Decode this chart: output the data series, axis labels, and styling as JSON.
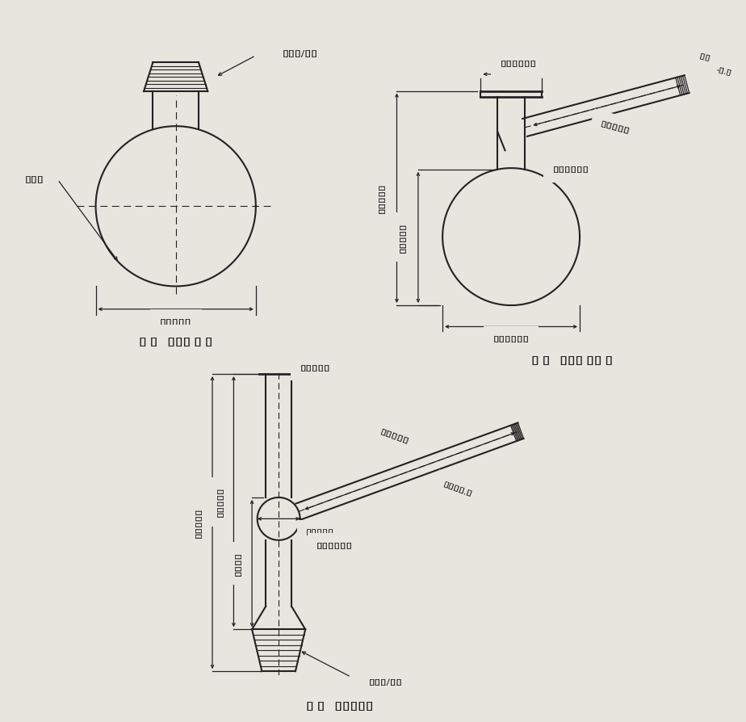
{
  "bg_color": "#e8e4de",
  "line_color": "#222222",
  "dim_color": "#222222",
  "fig1": {
    "title": "图 1   蒸馏瓶 I 型",
    "label_phi": "φ24/29",
    "label_dia": "φ69±1",
    "label_wall": "1～2"
  },
  "fig2": {
    "title": "图 2   蒸馏瓶 II 型",
    "label_top": "φ内21±1",
    "label_side": "φ外73±1",
    "label_179": "179±3",
    "label_120": "120±3",
    "label_tube": "100±3",
    "label_angle": "75°±3°",
    "label_phi7": "φ外 7+0.5\n         -0.5"
  },
  "fig3": {
    "title": "图 3   单球分馏管",
    "label_15": "φ15±1",
    "label_120": "120±2",
    "label_150": "150±2",
    "label_105": "105±1",
    "label_75": "75±1",
    "label_phi20": "φ20±1",
    "label_angle": "84°±1°",
    "label_phi8": "φ8±0.5",
    "label_phi24": "φ24/29"
  }
}
